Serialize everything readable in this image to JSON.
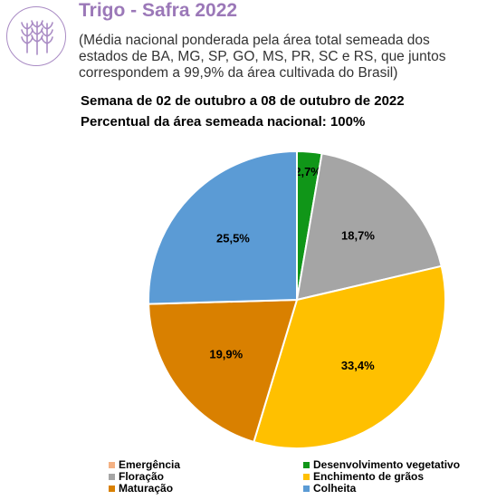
{
  "header": {
    "title": "Trigo - Safra 2022",
    "subtitle": "(Média nacional ponderada pela área total semeada dos estados de BA, MG, SP, GO, MS, PR, SC e RS, que juntos correspondem a 99,9% da área cultivada do Brasil)",
    "week": "Semana de 02 de outubro a 08 de outubro de 2022",
    "percent_area": "Percentual da área semeada nacional: 100%",
    "logo_icon": "wheat-icon"
  },
  "chart_data": {
    "type": "pie",
    "start_angle_deg": 0,
    "direction": "clockwise",
    "slices": [
      {
        "name": "Emergência",
        "value": 0.0,
        "label": "",
        "color": "#f4b183"
      },
      {
        "name": "Desenvolvimento vegetativo",
        "value": 2.7,
        "label": "2,7%",
        "color": "#109618"
      },
      {
        "name": "Floração",
        "value": 18.7,
        "label": "18,7%",
        "color": "#a5a5a5"
      },
      {
        "name": "Enchimento de grãos",
        "value": 33.4,
        "label": "33,4%",
        "color": "#ffc000"
      },
      {
        "name": "Maturação",
        "value": 19.9,
        "label": "19,9%",
        "color": "#d98000"
      },
      {
        "name": "Colheita",
        "value": 25.5,
        "label": "25,5%",
        "color": "#5b9bd5"
      }
    ],
    "legend_position": "bottom",
    "legend": [
      {
        "name": "Emergência",
        "color": "#f4b183"
      },
      {
        "name": "Desenvolvimento vegetativo",
        "color": "#109618"
      },
      {
        "name": "Floração",
        "color": "#a5a5a5"
      },
      {
        "name": "Enchimento de grãos",
        "color": "#ffc000"
      },
      {
        "name": "Maturação",
        "color": "#d98000"
      },
      {
        "name": "Colheita",
        "color": "#5b9bd5"
      }
    ]
  }
}
